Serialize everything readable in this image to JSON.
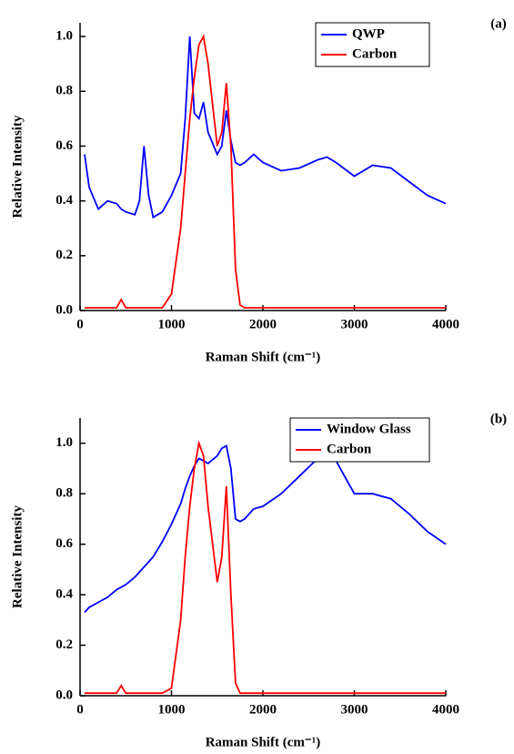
{
  "chart_data": [
    {
      "type": "line",
      "xlabel": "Raman Shift (cm⁻¹)",
      "ylabel": "Relative Intensity",
      "annotation": "(a)",
      "legend": "upper right",
      "x": [
        50,
        100,
        200,
        300,
        400,
        450,
        500,
        600,
        650,
        700,
        750,
        800,
        900,
        1000,
        1100,
        1150,
        1200,
        1250,
        1300,
        1350,
        1400,
        1500,
        1550,
        1600,
        1650,
        1700,
        1750,
        1800,
        1900,
        2000,
        2200,
        2400,
        2600,
        2700,
        2800,
        3000,
        3200,
        3400,
        3600,
        3800,
        4000
      ],
      "series": [
        {
          "name": "QWP",
          "color": "#0000ff",
          "values": [
            0.57,
            0.45,
            0.37,
            0.4,
            0.39,
            0.37,
            0.36,
            0.35,
            0.4,
            0.6,
            0.42,
            0.34,
            0.36,
            0.42,
            0.5,
            0.7,
            1.0,
            0.72,
            0.7,
            0.76,
            0.65,
            0.57,
            0.6,
            0.73,
            0.62,
            0.54,
            0.53,
            0.54,
            0.57,
            0.54,
            0.51,
            0.52,
            0.55,
            0.56,
            0.54,
            0.49,
            0.53,
            0.52,
            0.47,
            0.42,
            0.39
          ]
        },
        {
          "name": "Carbon",
          "color": "#ff0000",
          "values": [
            0.01,
            0.01,
            0.01,
            0.01,
            0.01,
            0.04,
            0.01,
            0.01,
            0.01,
            0.01,
            0.01,
            0.01,
            0.01,
            0.06,
            0.3,
            0.5,
            0.7,
            0.85,
            0.97,
            1.0,
            0.9,
            0.6,
            0.65,
            0.83,
            0.6,
            0.15,
            0.02,
            0.01,
            0.01,
            0.01,
            0.01,
            0.01,
            0.01,
            0.01,
            0.01,
            0.01,
            0.01,
            0.01,
            0.01,
            0.01,
            0.01
          ]
        }
      ],
      "xlim": [
        0,
        4000
      ],
      "xticks": [
        0,
        1000,
        2000,
        3000,
        4000
      ],
      "ylim": [
        0,
        1.05
      ],
      "yticks": [
        {
          "value": 0,
          "label": "0.0"
        },
        {
          "value": 0.2,
          "label": "0.2"
        },
        {
          "value": 0.4,
          "label": "0.4"
        },
        {
          "value": 0.6,
          "label": "0.6"
        },
        {
          "value": 0.8,
          "label": "0.8"
        },
        {
          "value": 1,
          "label": "1.0"
        }
      ]
    },
    {
      "type": "line",
      "xlabel": "Raman Shift (cm⁻¹)",
      "ylabel": "Relative Intensity",
      "annotation": "(b)",
      "legend": "upper right",
      "x": [
        50,
        100,
        200,
        300,
        400,
        450,
        500,
        600,
        650,
        700,
        750,
        800,
        900,
        1000,
        1100,
        1150,
        1200,
        1250,
        1300,
        1350,
        1400,
        1500,
        1550,
        1600,
        1650,
        1700,
        1750,
        1800,
        1900,
        2000,
        2200,
        2400,
        2600,
        2700,
        2800,
        3000,
        3200,
        3400,
        3600,
        3800,
        4000
      ],
      "series": [
        {
          "name": "Window Glass",
          "color": "#0000ff",
          "values": [
            0.33,
            0.35,
            0.37,
            0.39,
            0.42,
            0.43,
            0.44,
            0.47,
            0.49,
            0.51,
            0.53,
            0.55,
            0.61,
            0.68,
            0.76,
            0.82,
            0.87,
            0.91,
            0.94,
            0.93,
            0.92,
            0.95,
            0.98,
            0.99,
            0.9,
            0.7,
            0.69,
            0.7,
            0.74,
            0.75,
            0.8,
            0.87,
            0.94,
            0.95,
            0.93,
            0.8,
            0.8,
            0.78,
            0.72,
            0.65,
            0.6
          ]
        },
        {
          "name": "Carbon",
          "color": "#ff0000",
          "values": [
            0.01,
            0.01,
            0.01,
            0.01,
            0.01,
            0.04,
            0.01,
            0.01,
            0.01,
            0.01,
            0.01,
            0.01,
            0.01,
            0.03,
            0.3,
            0.55,
            0.75,
            0.9,
            1.0,
            0.95,
            0.75,
            0.45,
            0.55,
            0.83,
            0.4,
            0.05,
            0.01,
            0.01,
            0.01,
            0.01,
            0.01,
            0.01,
            0.01,
            0.01,
            0.01,
            0.01,
            0.01,
            0.01,
            0.01,
            0.01,
            0.01
          ]
        }
      ],
      "xlim": [
        0,
        4000
      ],
      "xticks": [
        0,
        1000,
        2000,
        3000,
        4000
      ],
      "ylim": [
        0,
        1.1
      ],
      "yticks": [
        {
          "value": 0,
          "label": "0.0"
        },
        {
          "value": 0.2,
          "label": "0.2"
        },
        {
          "value": 0.4,
          "label": "0.4"
        },
        {
          "value": 0.6,
          "label": "0.6"
        },
        {
          "value": 0.8,
          "label": "0.8"
        },
        {
          "value": 1,
          "label": "1.0"
        }
      ]
    }
  ]
}
